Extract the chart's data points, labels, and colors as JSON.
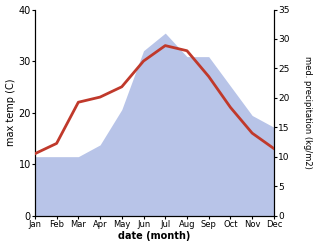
{
  "months": [
    "Jan",
    "Feb",
    "Mar",
    "Apr",
    "May",
    "Jun",
    "Jul",
    "Aug",
    "Sep",
    "Oct",
    "Nov",
    "Dec"
  ],
  "x": [
    0,
    1,
    2,
    3,
    4,
    5,
    6,
    7,
    8,
    9,
    10,
    11
  ],
  "max_temp": [
    12,
    14,
    22,
    23,
    25,
    30,
    33,
    32,
    27,
    21,
    16,
    13
  ],
  "precipitation": [
    10,
    10,
    10,
    12,
    18,
    28,
    31,
    27,
    27,
    22,
    17,
    15
  ],
  "temp_color": "#c0392b",
  "precip_color": "#b8c4e8",
  "temp_ylim": [
    0,
    40
  ],
  "precip_ylim": [
    0,
    35
  ],
  "temp_yticks": [
    0,
    10,
    20,
    30,
    40
  ],
  "precip_yticks": [
    0,
    5,
    10,
    15,
    20,
    25,
    30,
    35
  ],
  "xlabel": "date (month)",
  "ylabel_left": "max temp (C)",
  "ylabel_right": "med. precipitation (kg/m2)",
  "bg_color": "#ffffff",
  "line_width": 2.0
}
